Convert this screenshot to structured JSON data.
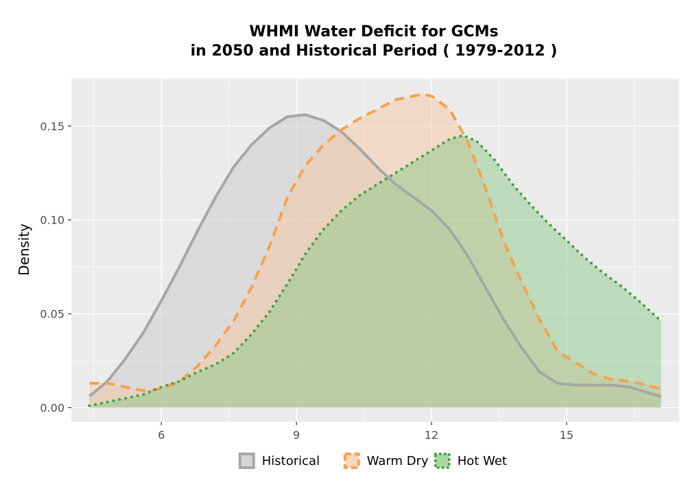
{
  "chart_data": {
    "type": "area",
    "title_lines": [
      "WHMI  Water Deficit for GCMs",
      "in 2050 and Historical Period ( 1979-2012 )"
    ],
    "xlabel": "",
    "ylabel": "Density",
    "xlim": [
      4.0,
      17.5
    ],
    "ylim": [
      -0.0075,
      0.1755
    ],
    "x_ticks": [
      6,
      9,
      12,
      15
    ],
    "x_tick_labels": [
      "6",
      "9",
      "12",
      "15"
    ],
    "y_ticks": [
      0.0,
      0.05,
      0.1,
      0.15
    ],
    "y_tick_labels": [
      "0.00",
      "0.05",
      "0.10",
      "0.15"
    ],
    "grid": true,
    "legend_position": "bottom",
    "series": [
      {
        "name": "Historical",
        "line_color": "#a6a6a6",
        "fill_color": "#cccccc",
        "fill_opacity": 0.55,
        "dash": "solid",
        "x": [
          4.4,
          4.8,
          5.2,
          5.6,
          6.0,
          6.4,
          6.8,
          7.2,
          7.6,
          8.0,
          8.4,
          8.8,
          9.2,
          9.6,
          10.0,
          10.4,
          10.8,
          11.2,
          11.6,
          12.0,
          12.4,
          12.8,
          13.2,
          13.6,
          14.0,
          14.4,
          14.8,
          15.2,
          15.6,
          16.0,
          16.4,
          16.8,
          17.1
        ],
        "y": [
          0.006,
          0.014,
          0.026,
          0.04,
          0.057,
          0.075,
          0.094,
          0.112,
          0.128,
          0.14,
          0.149,
          0.155,
          0.156,
          0.153,
          0.147,
          0.138,
          0.128,
          0.119,
          0.112,
          0.105,
          0.095,
          0.081,
          0.064,
          0.047,
          0.032,
          0.019,
          0.013,
          0.012,
          0.012,
          0.012,
          0.011,
          0.008,
          0.006
        ]
      },
      {
        "name": "Warm Dry",
        "line_color": "#f7a14e",
        "fill_color": "#f7c49b",
        "fill_opacity": 0.45,
        "dash": "dashed",
        "x": [
          4.4,
          4.8,
          5.2,
          5.6,
          6.0,
          6.4,
          6.8,
          7.2,
          7.6,
          8.0,
          8.4,
          8.8,
          9.2,
          9.6,
          10.0,
          10.4,
          10.8,
          11.2,
          11.6,
          11.8,
          12.0,
          12.4,
          12.8,
          13.2,
          13.6,
          14.0,
          14.4,
          14.8,
          15.2,
          15.6,
          16.0,
          16.4,
          16.8,
          17.1
        ],
        "y": [
          0.013,
          0.013,
          0.011,
          0.009,
          0.01,
          0.014,
          0.022,
          0.033,
          0.046,
          0.064,
          0.086,
          0.112,
          0.129,
          0.14,
          0.148,
          0.154,
          0.159,
          0.164,
          0.166,
          0.167,
          0.166,
          0.159,
          0.142,
          0.117,
          0.089,
          0.067,
          0.047,
          0.03,
          0.024,
          0.018,
          0.015,
          0.014,
          0.012,
          0.01
        ]
      },
      {
        "name": "Hot Wet",
        "line_color": "#3fa13b",
        "fill_color": "#8fc98b",
        "fill_opacity": 0.5,
        "dash": "dotted",
        "x": [
          4.4,
          4.8,
          5.2,
          5.6,
          6.0,
          6.4,
          6.8,
          7.2,
          7.6,
          8.0,
          8.4,
          8.8,
          9.2,
          9.6,
          10.0,
          10.4,
          10.8,
          11.2,
          11.6,
          12.0,
          12.4,
          12.7,
          13.0,
          13.4,
          13.8,
          14.2,
          14.6,
          15.0,
          15.4,
          15.8,
          16.2,
          16.6,
          17.1
        ],
        "y": [
          0.001,
          0.003,
          0.005,
          0.007,
          0.011,
          0.014,
          0.019,
          0.023,
          0.029,
          0.039,
          0.051,
          0.066,
          0.082,
          0.095,
          0.105,
          0.113,
          0.119,
          0.125,
          0.131,
          0.137,
          0.143,
          0.145,
          0.142,
          0.132,
          0.119,
          0.108,
          0.098,
          0.089,
          0.08,
          0.072,
          0.065,
          0.057,
          0.046
        ]
      }
    ]
  }
}
